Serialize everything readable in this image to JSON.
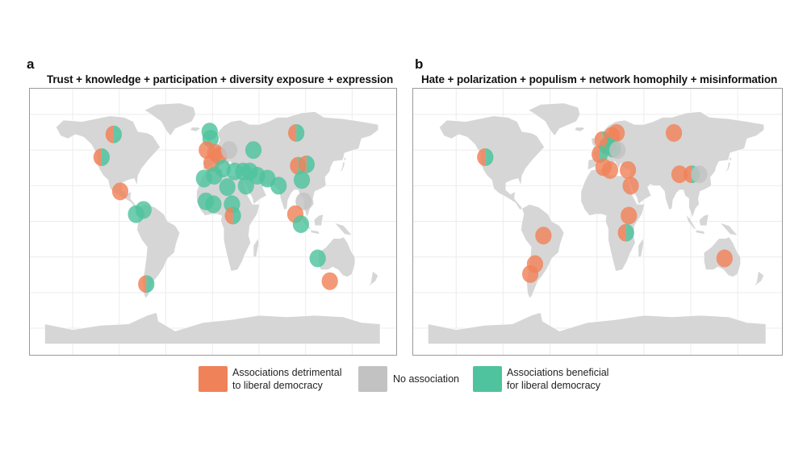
{
  "panels": [
    {
      "letter": "a",
      "title": "Trust + knowledge + participation + diversity exposure + expression",
      "markers": [
        {
          "lon": -106,
          "lat": 61,
          "type": "split"
        },
        {
          "lon": -119,
          "lat": 45,
          "type": "split"
        },
        {
          "lon": -99,
          "lat": 21,
          "type": "detrimental"
        },
        {
          "lon": -74,
          "lat": 8,
          "type": "beneficial"
        },
        {
          "lon": -82,
          "lat": 5,
          "type": "beneficial"
        },
        {
          "lon": -71,
          "lat": -44,
          "type": "split"
        },
        {
          "lon": -3,
          "lat": 63,
          "type": "beneficial"
        },
        {
          "lon": -2,
          "lat": 58,
          "type": "beneficial"
        },
        {
          "lon": -6,
          "lat": 50,
          "type": "detrimental"
        },
        {
          "lon": 3,
          "lat": 48,
          "type": "detrimental"
        },
        {
          "lon": 7,
          "lat": 46,
          "type": "detrimental"
        },
        {
          "lon": -1,
          "lat": 41,
          "type": "detrimental"
        },
        {
          "lon": 18,
          "lat": 50,
          "type": "none"
        },
        {
          "lon": 44,
          "lat": 50,
          "type": "beneficial"
        },
        {
          "lon": 11,
          "lat": 37,
          "type": "beneficial"
        },
        {
          "lon": 2,
          "lat": 32,
          "type": "beneficial"
        },
        {
          "lon": -9,
          "lat": 30,
          "type": "beneficial"
        },
        {
          "lon": 24,
          "lat": 35,
          "type": "beneficial"
        },
        {
          "lon": 33,
          "lat": 35,
          "type": "beneficial"
        },
        {
          "lon": 40,
          "lat": 35,
          "type": "beneficial"
        },
        {
          "lon": 48,
          "lat": 32,
          "type": "beneficial"
        },
        {
          "lon": 59,
          "lat": 30,
          "type": "beneficial"
        },
        {
          "lon": 71,
          "lat": 25,
          "type": "beneficial"
        },
        {
          "lon": 36,
          "lat": 25,
          "type": "beneficial"
        },
        {
          "lon": 16,
          "lat": 24,
          "type": "beneficial"
        },
        {
          "lon": -7,
          "lat": 14,
          "type": "beneficial"
        },
        {
          "lon": 1,
          "lat": 12,
          "type": "beneficial"
        },
        {
          "lon": 21,
          "lat": 12,
          "type": "beneficial"
        },
        {
          "lon": 22,
          "lat": 4,
          "type": "split"
        },
        {
          "lon": 90,
          "lat": 62,
          "type": "split"
        },
        {
          "lon": 92,
          "lat": 39,
          "type": "split"
        },
        {
          "lon": 101,
          "lat": 40,
          "type": "split"
        },
        {
          "lon": 96,
          "lat": 29,
          "type": "beneficial"
        },
        {
          "lon": 98,
          "lat": 14,
          "type": "none"
        },
        {
          "lon": 89,
          "lat": 5,
          "type": "detrimental"
        },
        {
          "lon": 95,
          "lat": -2,
          "type": "beneficial"
        },
        {
          "lon": 113,
          "lat": -26,
          "type": "beneficial"
        },
        {
          "lon": 126,
          "lat": -42,
          "type": "detrimental"
        }
      ]
    },
    {
      "letter": "b",
      "title": "Hate + polarization + populism + network homophily + misinformation",
      "markers": [
        {
          "lon": -119,
          "lat": 45,
          "type": "split"
        },
        {
          "lon": -57,
          "lat": -10,
          "type": "detrimental"
        },
        {
          "lon": -66,
          "lat": -30,
          "type": "detrimental"
        },
        {
          "lon": -71,
          "lat": -37,
          "type": "detrimental"
        },
        {
          "lon": 6,
          "lat": 57,
          "type": "split"
        },
        {
          "lon": 21,
          "lat": 62,
          "type": "detrimental"
        },
        {
          "lon": 16,
          "lat": 60,
          "type": "detrimental"
        },
        {
          "lon": 11,
          "lat": 53,
          "type": "split"
        },
        {
          "lon": 17,
          "lat": 51,
          "type": "beneficial"
        },
        {
          "lon": 3,
          "lat": 47,
          "type": "split"
        },
        {
          "lon": 22,
          "lat": 50,
          "type": "none"
        },
        {
          "lon": 7,
          "lat": 38,
          "type": "detrimental"
        },
        {
          "lon": 14,
          "lat": 36,
          "type": "detrimental"
        },
        {
          "lon": 33,
          "lat": 36,
          "type": "detrimental"
        },
        {
          "lon": 36,
          "lat": 25,
          "type": "detrimental"
        },
        {
          "lon": 34,
          "lat": 4,
          "type": "detrimental"
        },
        {
          "lon": 31,
          "lat": -8,
          "type": "split"
        },
        {
          "lon": 82,
          "lat": 62,
          "type": "detrimental"
        },
        {
          "lon": 88,
          "lat": 33,
          "type": "detrimental"
        },
        {
          "lon": 101,
          "lat": 33,
          "type": "split"
        },
        {
          "lon": 109,
          "lat": 33,
          "type": "none"
        },
        {
          "lon": 136,
          "lat": -26,
          "type": "detrimental"
        }
      ]
    }
  ],
  "legend": [
    {
      "type": "detrimental",
      "line1": "Associations detrimental",
      "line2": "to liberal democracy"
    },
    {
      "type": "none",
      "line1": "No association",
      "line2": ""
    },
    {
      "type": "beneficial",
      "line1": "Associations beneficial",
      "line2": "for liberal democracy"
    }
  ],
  "colors": {
    "detrimental": "#f08259",
    "none": "#c2c2c2",
    "beneficial": "#4fc39d",
    "land": "#d6d6d6",
    "grid": "#ececec"
  }
}
